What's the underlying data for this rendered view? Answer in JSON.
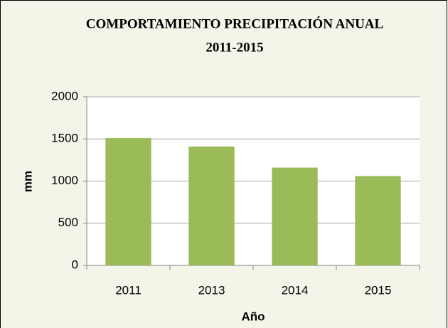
{
  "chart_data": {
    "type": "bar",
    "title": "COMPORTAMIENTO PRECIPITACIÓN ANUAL",
    "subtitle": "2011-2015",
    "x_label": "Año",
    "y_label": "mm",
    "categories": [
      "2011",
      "2013",
      "2014",
      "2015"
    ],
    "values": [
      1510,
      1410,
      1160,
      1060
    ],
    "color": "#9bbb59",
    "ylim": [
      0,
      2000
    ],
    "yticks": [
      0,
      500,
      1000,
      1500,
      2000
    ],
    "grid": true
  }
}
